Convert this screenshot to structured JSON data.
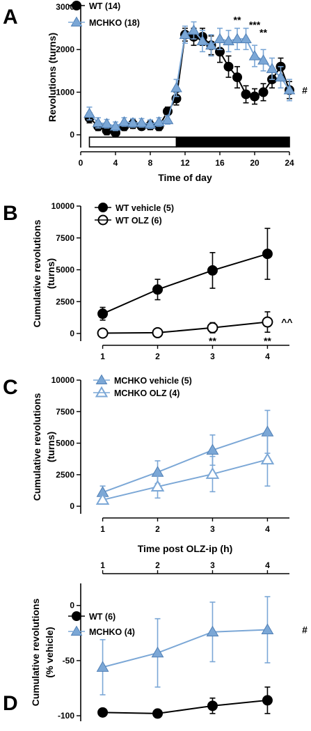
{
  "colors": {
    "wt": "#000000",
    "mchko": "#7ba7d6",
    "mchko_edge": "#4f7fb5",
    "axis": "#000000"
  },
  "chart_data": [
    {
      "panel": "A",
      "type": "line",
      "xlabel": "Time of day",
      "ylabel": "Revolutions (turns)",
      "xlim": [
        0,
        24
      ],
      "ylim": [
        -300,
        3000
      ],
      "xticks": [
        0,
        4,
        8,
        12,
        16,
        20,
        24
      ],
      "yticks": [
        0,
        1000,
        2000,
        3000
      ],
      "light_dark_bar": {
        "light": [
          1,
          11
        ],
        "dark": [
          11,
          24
        ]
      },
      "x": [
        1,
        2,
        3,
        4,
        5,
        6,
        7,
        8,
        9,
        10,
        11,
        12,
        13,
        14,
        15,
        16,
        17,
        18,
        19,
        20,
        21,
        22,
        23,
        24
      ],
      "series": [
        {
          "name": "WT (14)",
          "marker": "circle",
          "filled": true,
          "color": "#000000",
          "values": [
            400,
            200,
            100,
            50,
            200,
            250,
            200,
            220,
            200,
            550,
            850,
            2350,
            2300,
            2300,
            2100,
            1950,
            1600,
            1350,
            950,
            900,
            1000,
            1300,
            1600,
            1050
          ],
          "errors": [
            120,
            100,
            100,
            80,
            100,
            100,
            80,
            100,
            100,
            100,
            150,
            150,
            200,
            200,
            220,
            250,
            250,
            250,
            200,
            180,
            200,
            200,
            200,
            200
          ]
        },
        {
          "name": "MCHKO (18)",
          "marker": "triangle",
          "filled": true,
          "color": "#7ba7d6",
          "values": [
            500,
            280,
            260,
            200,
            300,
            280,
            280,
            250,
            300,
            350,
            1100,
            2350,
            2450,
            2200,
            2100,
            2250,
            2200,
            2250,
            2250,
            1850,
            1750,
            1550,
            1350,
            1050
          ],
          "errors": [
            150,
            120,
            100,
            100,
            100,
            100,
            100,
            100,
            100,
            100,
            200,
            200,
            200,
            250,
            250,
            250,
            250,
            250,
            250,
            250,
            250,
            250,
            250,
            250
          ]
        }
      ],
      "annotations": [
        {
          "x": 18,
          "text": "**"
        },
        {
          "x": 20,
          "text": "***"
        },
        {
          "x": 21,
          "text": "**"
        },
        {
          "x": 24,
          "text": "#"
        }
      ]
    },
    {
      "panel": "B",
      "type": "line",
      "xlabel": "",
      "ylabel": "Cumulative revolutions (turns)",
      "xlim": [
        0.6,
        4.4
      ],
      "ylim": [
        -600,
        10000
      ],
      "x": [
        1,
        2,
        3,
        4
      ],
      "xticks": [
        1,
        2,
        3,
        4
      ],
      "yticks": [
        0,
        2500,
        5000,
        7500,
        10000
      ],
      "series": [
        {
          "name": "WT vehicle (5)",
          "marker": "circle",
          "filled": true,
          "color": "#000000",
          "values": [
            1550,
            3450,
            4950,
            6250
          ],
          "errors": [
            500,
            800,
            1400,
            2000
          ]
        },
        {
          "name": "WT OLZ (6)",
          "marker": "circle",
          "filled": false,
          "color": "#000000",
          "values": [
            30,
            60,
            450,
            900
          ],
          "errors": [
            100,
            100,
            400,
            800
          ]
        }
      ],
      "annotations": [
        {
          "x": 3,
          "text": "**"
        },
        {
          "x": 4,
          "text": "**"
        },
        {
          "x": 4,
          "text": "^^"
        }
      ]
    },
    {
      "panel": "C",
      "type": "line",
      "xlabel": "Time post OLZ-ip (h)",
      "ylabel": "Cumulative revolutions (turns)",
      "xlim": [
        0.6,
        4.4
      ],
      "ylim": [
        -600,
        10000
      ],
      "x": [
        1,
        2,
        3,
        4
      ],
      "xticks": [
        1,
        2,
        3,
        4
      ],
      "yticks": [
        0,
        2500,
        5000,
        7500,
        10000
      ],
      "series": [
        {
          "name": "MCHKO vehicle (5)",
          "marker": "triangle",
          "filled": true,
          "color": "#7ba7d6",
          "values": [
            1100,
            2700,
            4450,
            5900
          ],
          "errors": [
            500,
            900,
            1200,
            1700
          ]
        },
        {
          "name": "MCHKO OLZ (4)",
          "marker": "triangle",
          "filled": false,
          "color": "#7ba7d6",
          "values": [
            500,
            1550,
            2550,
            3700
          ],
          "errors": [
            300,
            900,
            1400,
            2100
          ]
        }
      ]
    },
    {
      "panel": "D",
      "type": "line",
      "xlabel": "",
      "ylabel": "Cumulative revolutions (% vehicle)",
      "xlim": [
        0.6,
        4.4
      ],
      "ylim": [
        -105,
        20
      ],
      "x": [
        1,
        2,
        3,
        4
      ],
      "xticks": [
        1,
        2,
        3,
        4
      ],
      "yticks": [
        -100,
        -50,
        0
      ],
      "series": [
        {
          "name": "WT (6)",
          "marker": "circle",
          "filled": true,
          "color": "#000000",
          "values": [
            -97,
            -98,
            -91,
            -86
          ],
          "errors": [
            0,
            0,
            7,
            12
          ]
        },
        {
          "name": "MCHKO (4)",
          "marker": "triangle",
          "filled": true,
          "color": "#7ba7d6",
          "values": [
            -56,
            -43,
            -24,
            -22
          ],
          "errors": [
            25,
            31,
            27,
            30
          ]
        }
      ],
      "annotations": [
        {
          "x": 4,
          "text": "#"
        }
      ]
    }
  ]
}
